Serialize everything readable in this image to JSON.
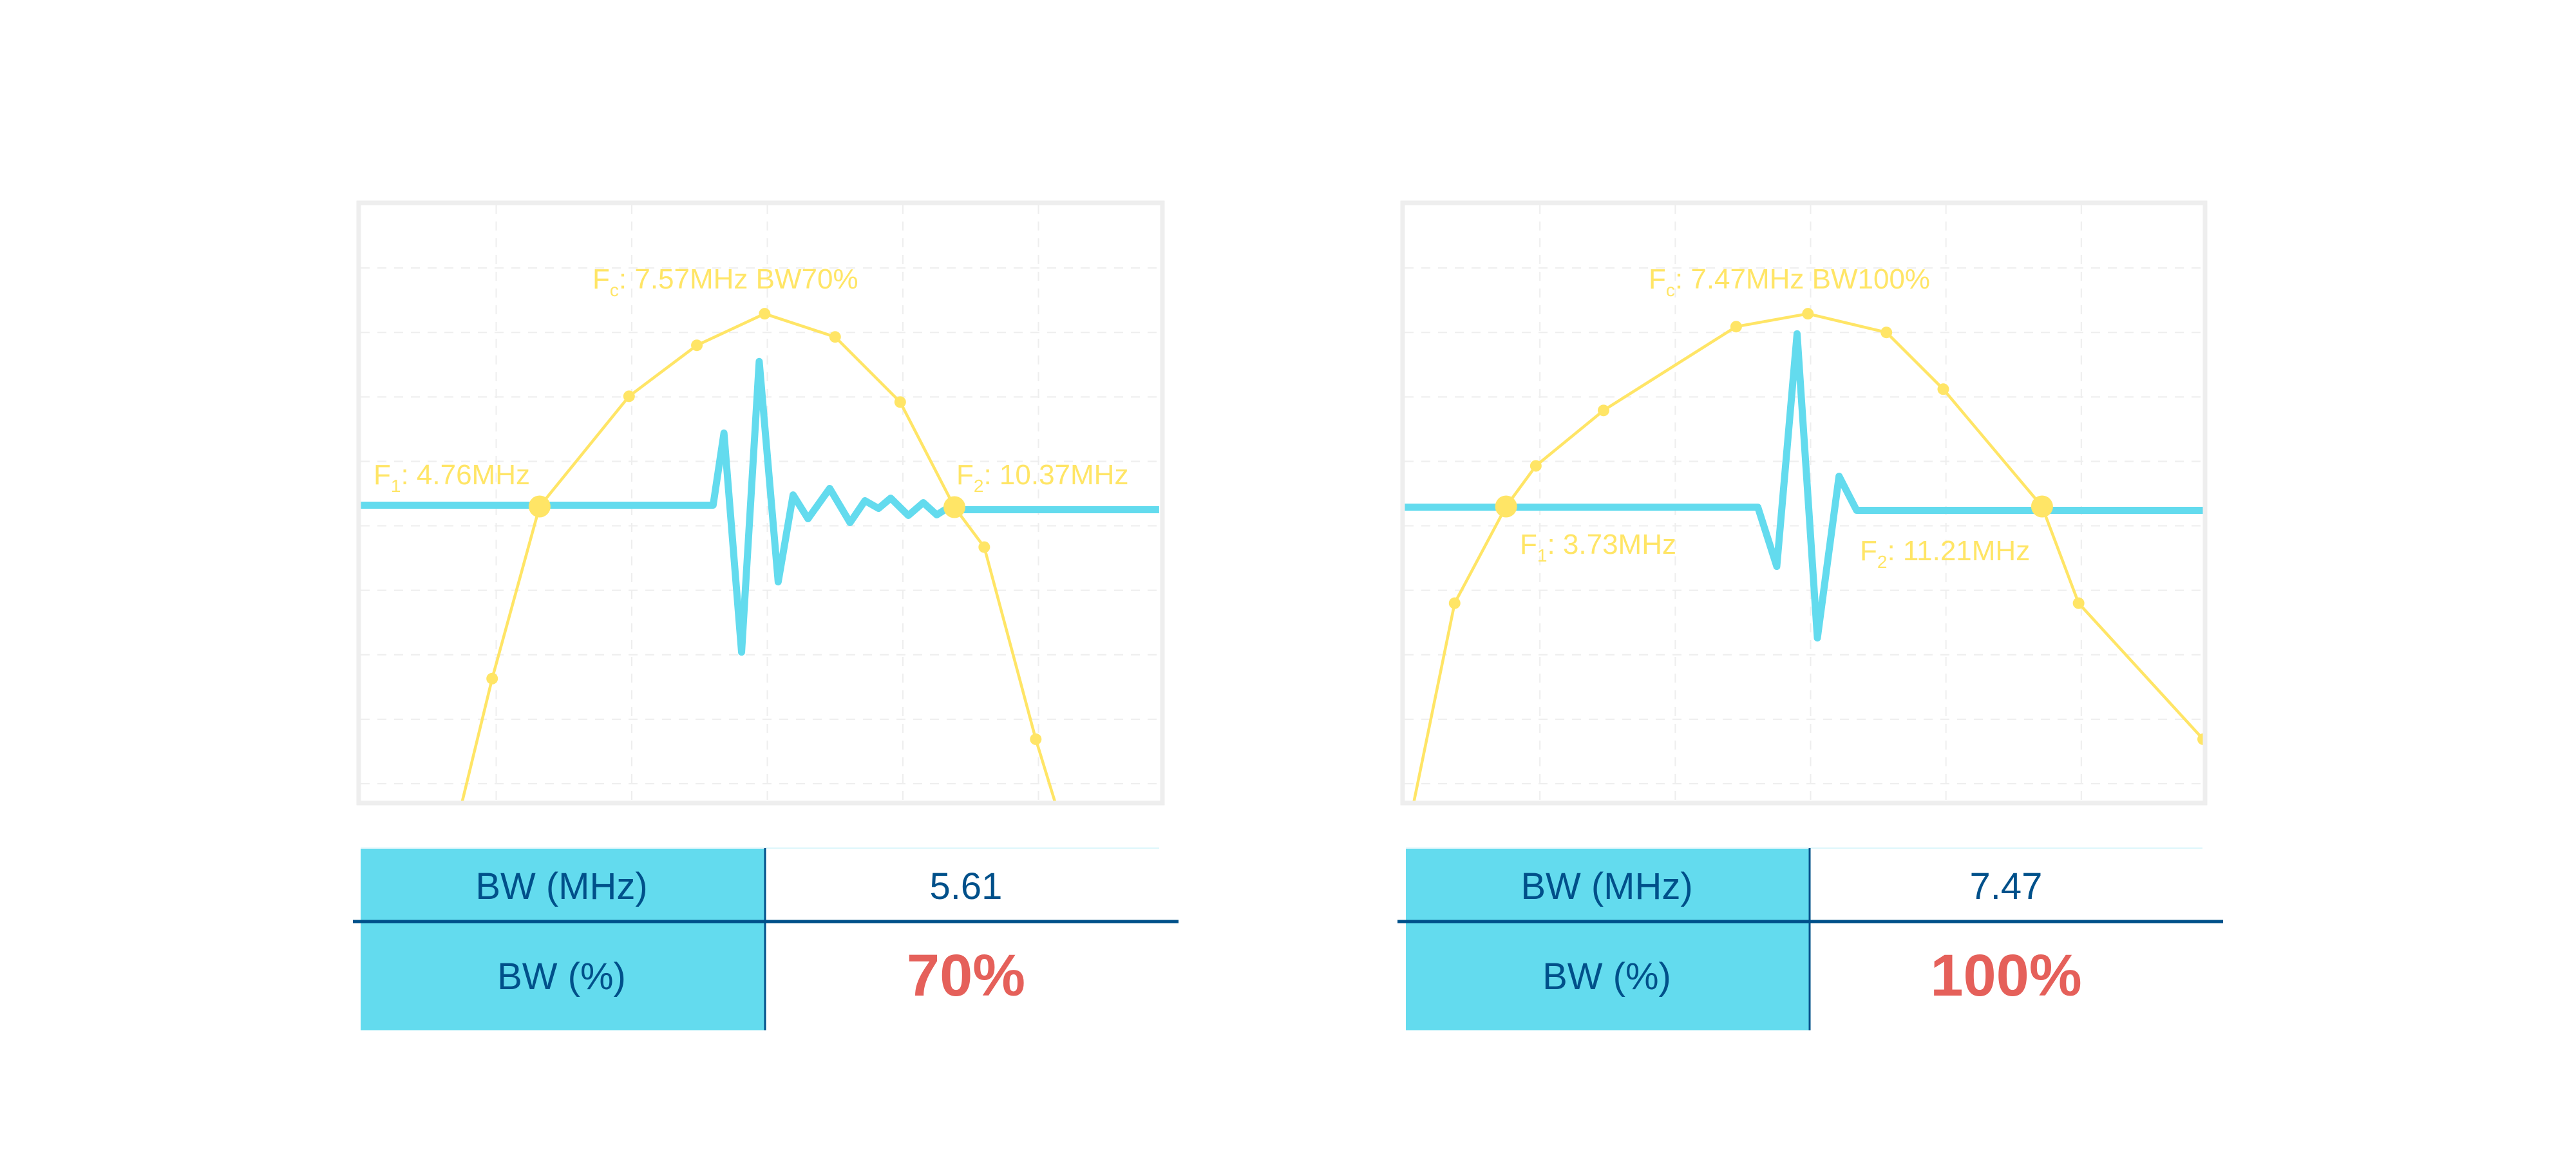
{
  "colors": {
    "response": "#FFE566",
    "pulse": "#63DBEE",
    "table_header": "#63DBEE",
    "table_text": "#00508A",
    "highlight": "#E5605A",
    "frame": "#EEEEEE"
  },
  "chart_data": [
    {
      "type": "line",
      "xlim": [
        0,
        5.9
      ],
      "ylim": [
        0,
        9.25
      ],
      "grid": true,
      "labels": {
        "fc": "7.57MHz BW70%",
        "f1": "4.76MHz",
        "f2": "10.37MHz"
      },
      "series": [
        {
          "role": "frequency-response",
          "color": "#FFE566",
          "markers": true,
          "x": [
            0.75,
            0.97,
            1.32,
            1.98,
            2.48,
            2.98,
            3.5,
            3.98,
            4.38,
            4.6,
            4.98,
            5.12
          ],
          "y": [
            0,
            1.9,
            4.57,
            6.28,
            7.07,
            7.56,
            7.2,
            6.19,
            4.56,
            3.94,
            0.96,
            0
          ],
          "big_markers": [
            2,
            8
          ],
          "no_marker": [
            0,
            11
          ]
        },
        {
          "role": "pulse-waveform",
          "color": "#63DBEE",
          "markers": false,
          "x": [
            0,
            2.6,
            2.68,
            2.81,
            2.94,
            3.08,
            3.19,
            3.3,
            3.46,
            3.61,
            3.72,
            3.82,
            3.91,
            4.04,
            4.15,
            4.25,
            4.37,
            4.38,
            5.89
          ],
          "y": [
            4.59,
            4.59,
            5.71,
            2.31,
            6.82,
            3.4,
            4.75,
            4.38,
            4.85,
            4.32,
            4.66,
            4.54,
            4.7,
            4.43,
            4.63,
            4.44,
            4.6,
            4.52,
            4.52
          ]
        }
      ],
      "table": {
        "rows": [
          {
            "label": "BW (MHz)",
            "value": "5.61"
          },
          {
            "label": "BW (%)",
            "value": "70%"
          }
        ]
      }
    },
    {
      "type": "line",
      "xlim": [
        0,
        5.9
      ],
      "ylim": [
        0,
        9.25
      ],
      "grid": true,
      "labels": {
        "fc": "7.47MHz BW100%",
        "f1": "3.73MHz",
        "f2": "11.21MHz"
      },
      "series": [
        {
          "role": "frequency-response",
          "color": "#FFE566",
          "markers": true,
          "x": [
            0.07,
            0.37,
            0.75,
            0.97,
            1.47,
            2.45,
            2.98,
            3.56,
            3.98,
            4.71,
            4.98,
            5.9
          ],
          "y": [
            0,
            3.07,
            4.57,
            5.2,
            6.06,
            7.36,
            7.56,
            7.27,
            6.39,
            4.57,
            3.07,
            0.96
          ],
          "big_markers": [
            2,
            9
          ],
          "no_marker": [
            0
          ]
        },
        {
          "role": "pulse-waveform",
          "color": "#63DBEE",
          "markers": false,
          "x": [
            0,
            2.61,
            2.75,
            2.9,
            3.05,
            3.21,
            3.34,
            5.9
          ],
          "y": [
            4.56,
            4.56,
            3.64,
            7.25,
            2.53,
            5.04,
            4.51,
            4.51
          ]
        }
      ],
      "table": {
        "rows": [
          {
            "label": "BW (MHz)",
            "value": "7.47"
          },
          {
            "label": "BW (%)",
            "value": "100%"
          }
        ]
      }
    }
  ]
}
